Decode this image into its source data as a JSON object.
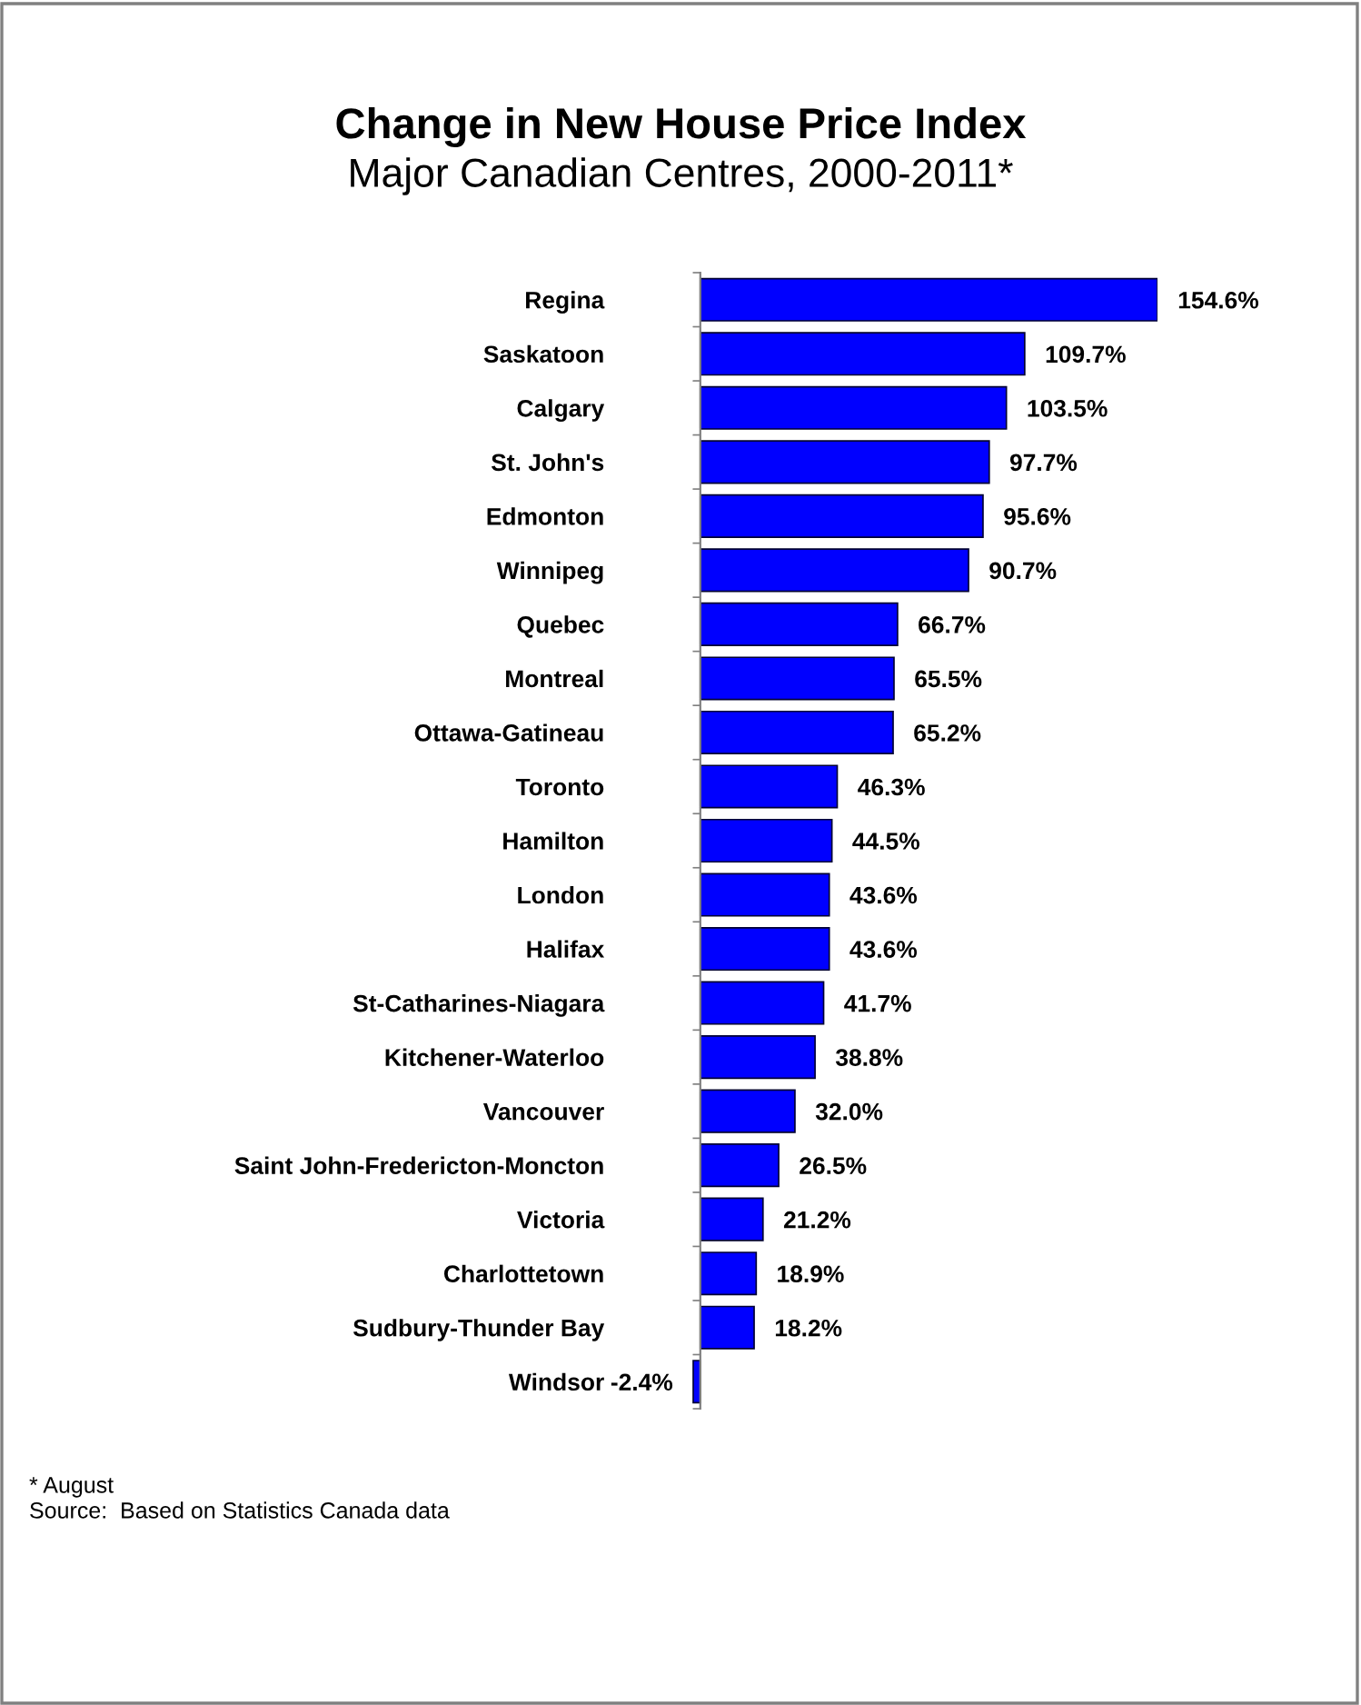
{
  "chart_data": {
    "type": "bar",
    "orientation": "horizontal",
    "title": "Change in New House Price Index",
    "subtitle": "Major Canadian Centres, 2000-2011*",
    "categories": [
      "Regina",
      "Saskatoon",
      "Calgary",
      "St. John's",
      "Edmonton",
      "Winnipeg",
      "Quebec",
      "Montreal",
      "Ottawa-Gatineau",
      "Toronto",
      "Hamilton",
      "London",
      "Halifax",
      "St-Catharines-Niagara",
      "Kitchener-Waterloo",
      "Vancouver",
      "Saint John-Fredericton-Moncton",
      "Victoria",
      "Charlottetown",
      "Sudbury-Thunder Bay",
      "Windsor"
    ],
    "values": [
      154.6,
      109.7,
      103.5,
      97.7,
      95.6,
      90.7,
      66.7,
      65.5,
      65.2,
      46.3,
      44.5,
      43.6,
      43.6,
      41.7,
      38.8,
      32.0,
      26.5,
      21.2,
      18.9,
      18.2,
      -2.4
    ],
    "value_labels": [
      "154.6%",
      "109.7%",
      "103.5%",
      "97.7%",
      "95.6%",
      "90.7%",
      "66.7%",
      "65.5%",
      "65.2%",
      "46.3%",
      "44.5%",
      "43.6%",
      "43.6%",
      "41.7%",
      "38.8%",
      "32.0%",
      "26.5%",
      "21.2%",
      "18.9%",
      "18.2%",
      "-2.4%"
    ],
    "color": "#0000ff",
    "tick_labels": "y",
    "grid": false,
    "legend": false,
    "annotations": [
      "* August",
      "Source:  Based on Statistics Canada data"
    ]
  }
}
